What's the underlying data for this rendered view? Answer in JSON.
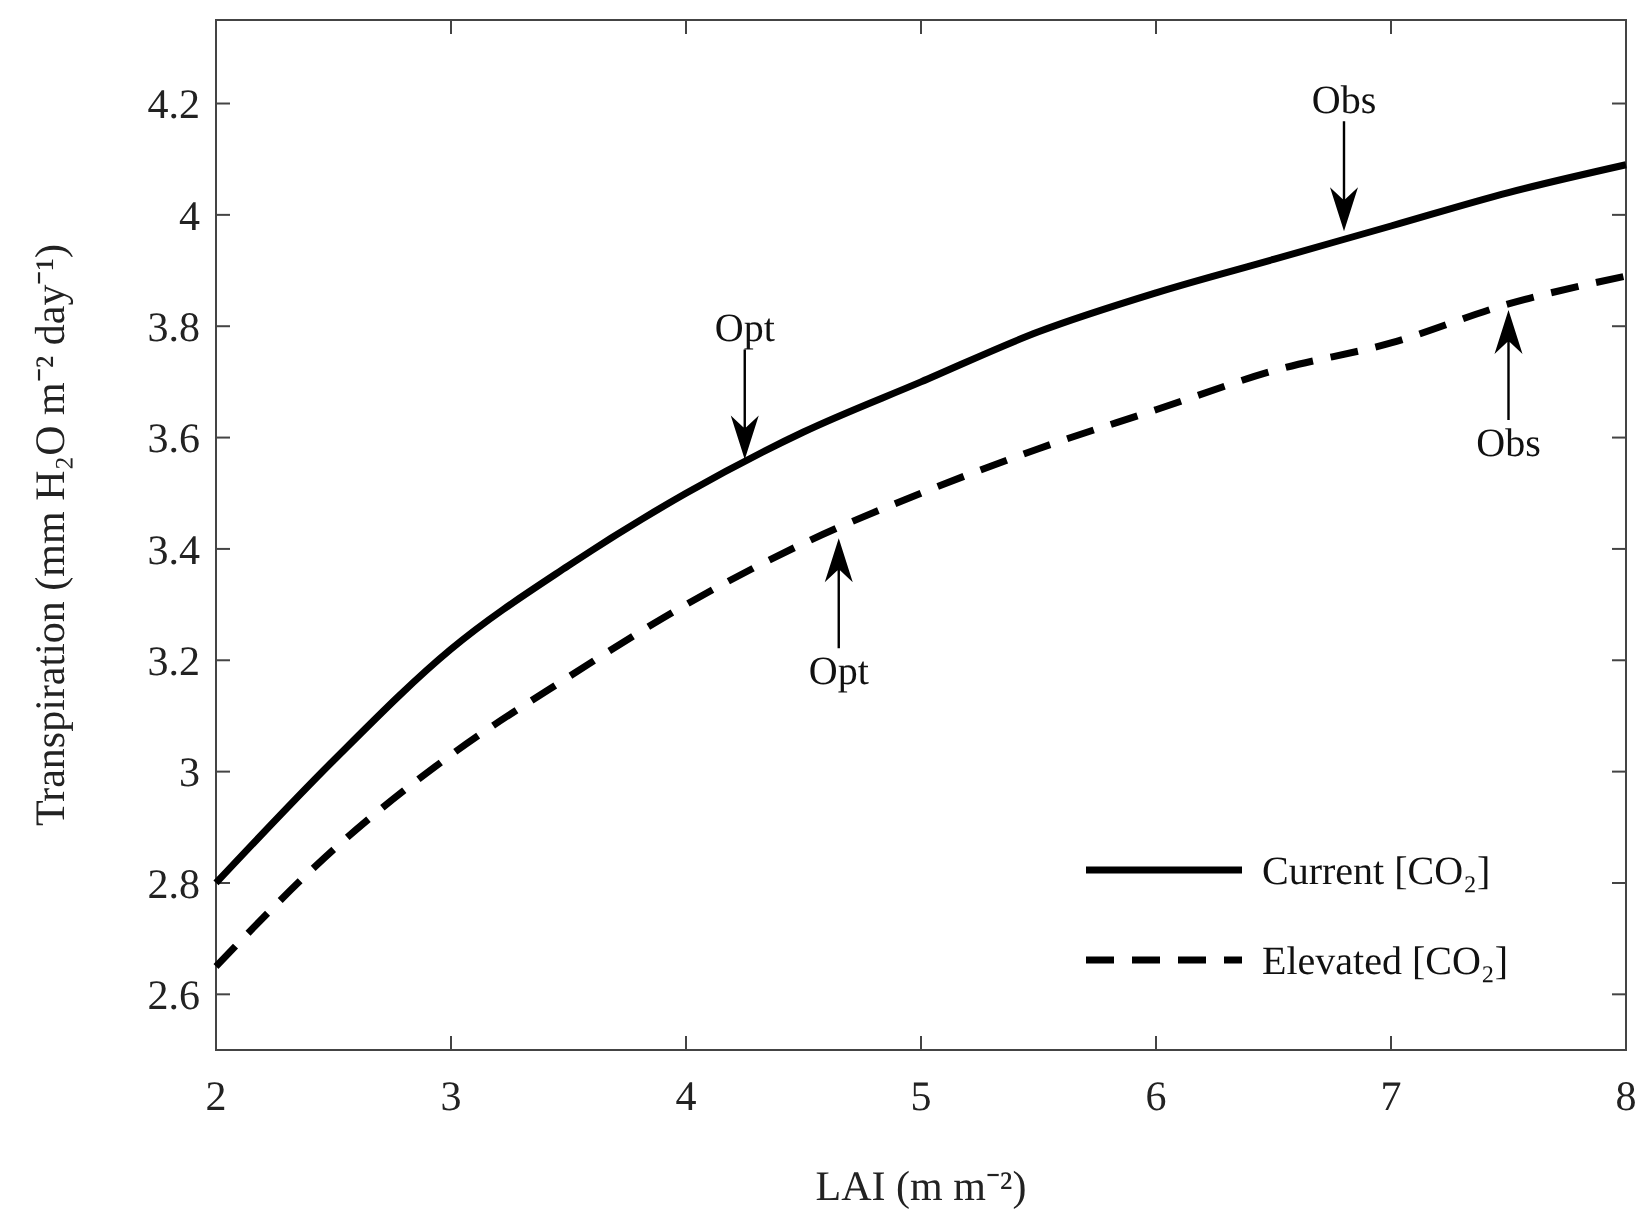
{
  "chart_data": {
    "type": "line",
    "xlabel": "LAI (m m⁻²)",
    "ylabel": "Transpiration (mm H₂O m⁻² day⁻¹)",
    "xlim": [
      2,
      8
    ],
    "xticks": [
      2,
      3,
      4,
      5,
      6,
      7,
      8
    ],
    "ylim": [
      2.5,
      4.35
    ],
    "yticks": [
      2.6,
      2.8,
      3,
      3.2,
      3.4,
      3.6,
      3.8,
      4,
      4.2
    ],
    "x": [
      2,
      2.5,
      3,
      3.5,
      4,
      4.5,
      5,
      5.5,
      6,
      6.5,
      7,
      7.5,
      8
    ],
    "series": [
      {
        "name": "Current [CO₂]",
        "color": "#000000",
        "line_style": "solid",
        "values": [
          2.8,
          3.02,
          3.22,
          3.37,
          3.5,
          3.61,
          3.7,
          3.79,
          3.86,
          3.92,
          3.98,
          4.04,
          4.09
        ]
      },
      {
        "name": "Elevated [CO₂]",
        "color": "#000000",
        "line_style": "dashed",
        "values": [
          2.65,
          2.86,
          3.03,
          3.17,
          3.3,
          3.41,
          3.5,
          3.58,
          3.65,
          3.72,
          3.77,
          3.84,
          3.89
        ]
      }
    ],
    "annotations": [
      {
        "text": "Opt",
        "x": 4.25,
        "y": 3.55
      },
      {
        "text": "Obs",
        "x": 6.8,
        "y": 3.96
      },
      {
        "text": "Opt",
        "x": 4.65,
        "y": 3.43
      },
      {
        "text": "Obs",
        "x": 7.5,
        "y": 3.84
      }
    ],
    "legend": "bottom right",
    "grid": false
  }
}
